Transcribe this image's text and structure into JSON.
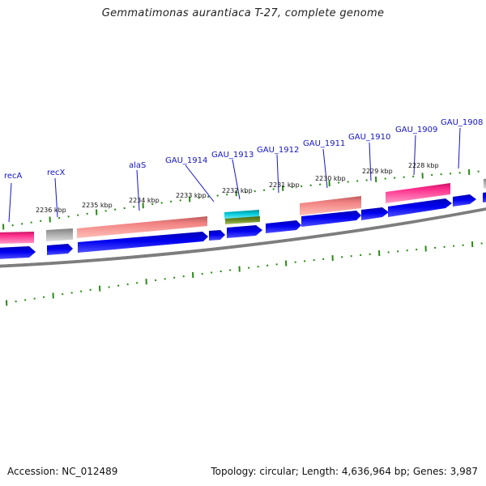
{
  "title": "Gemmatimonas aurantiaca T-27, complete genome",
  "footer": {
    "accession": "Accession: NC_012489",
    "summary": "Topology: circular; Length: 4,636,964 bp; Genes: 3,987"
  },
  "colors": {
    "gene_label": "#1414c8",
    "cds_arrow": "#0000e6",
    "rna_pink": "#ff2d8c",
    "salmon_feature": "#f08080",
    "gray_feature": "#a8a8a8",
    "cyan_feature": "#00c8d8",
    "olive_feature": "#6b8c23",
    "tick_green": "#2a8a14",
    "backbone": "#888888"
  },
  "gene_labels": [
    {
      "id": "recA",
      "text": "recA"
    },
    {
      "id": "recX",
      "text": "recX"
    },
    {
      "id": "alaS",
      "text": "alaS"
    },
    {
      "id": "gau1914",
      "text": "GAU_1914"
    },
    {
      "id": "gau1913",
      "text": "GAU_1913"
    },
    {
      "id": "gau1912",
      "text": "GAU_1912"
    },
    {
      "id": "gau1911",
      "text": "GAU_1911"
    },
    {
      "id": "gau1910",
      "text": "GAU_1910"
    },
    {
      "id": "gau1909",
      "text": "GAU_1909"
    },
    {
      "id": "gau1908",
      "text": "GAU_1908"
    }
  ],
  "scale_labels": [
    {
      "id": "k2236",
      "text": "2236 kbp"
    },
    {
      "id": "k2235",
      "text": "2235 kbp"
    },
    {
      "id": "k2234",
      "text": "2234 kbp"
    },
    {
      "id": "k2233",
      "text": "2233 kbp"
    },
    {
      "id": "k2232",
      "text": "2232 kbp"
    },
    {
      "id": "k2231",
      "text": "2231 kbp"
    },
    {
      "id": "k2230",
      "text": "2230 kbp"
    },
    {
      "id": "k2229",
      "text": "2229 kbp"
    },
    {
      "id": "k2228",
      "text": "2228 kbp"
    }
  ]
}
